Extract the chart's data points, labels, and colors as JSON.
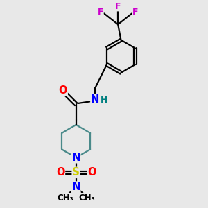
{
  "background_color": "#e8e8e8",
  "bond_color": "#000000",
  "pip_bond_color": "#4a8a8a",
  "atom_colors": {
    "O": "#ff0000",
    "N": "#0000ff",
    "S": "#cccc00",
    "F": "#cc00cc",
    "H": "#008080",
    "C": "#000000"
  },
  "figsize": [
    3.0,
    3.0
  ],
  "dpi": 100
}
